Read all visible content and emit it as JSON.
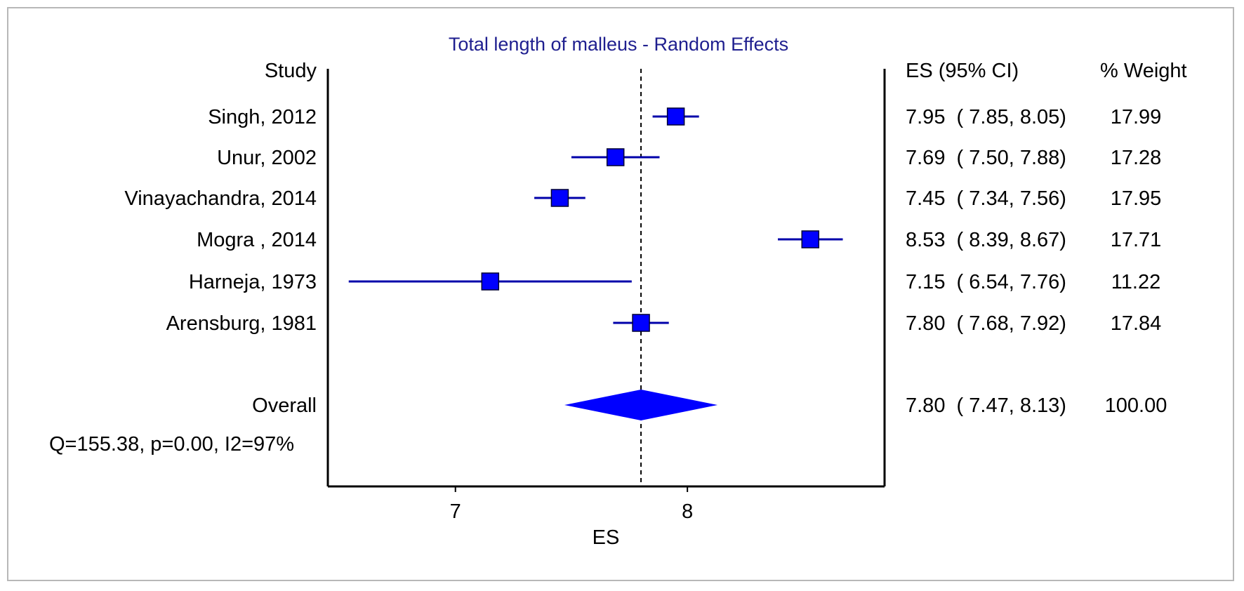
{
  "chart_data": {
    "type": "forest",
    "title": "Total length of malleus - Random Effects",
    "xlabel": "ES",
    "xlim": [
      6.45,
      8.85
    ],
    "xticks": [
      7,
      8
    ],
    "reference_line": 7.8,
    "study_header": "Study",
    "es_header": "ES (95% CI)",
    "weight_header": "% Weight",
    "studies": [
      {
        "label": "Singh, 2012",
        "es": 7.95,
        "lo": 7.85,
        "hi": 8.05,
        "ci_text": "7.95  ( 7.85, 8.05)",
        "weight": "17.99"
      },
      {
        "label": "Unur, 2002",
        "es": 7.69,
        "lo": 7.5,
        "hi": 7.88,
        "ci_text": "7.69  ( 7.50, 7.88)",
        "weight": "17.28"
      },
      {
        "label": "Vinayachandra, 2014",
        "es": 7.45,
        "lo": 7.34,
        "hi": 7.56,
        "ci_text": "7.45  ( 7.34, 7.56)",
        "weight": "17.95"
      },
      {
        "label": "Mogra , 2014",
        "es": 8.53,
        "lo": 8.39,
        "hi": 8.67,
        "ci_text": "8.53  ( 8.39, 8.67)",
        "weight": "17.71"
      },
      {
        "label": "Harneja, 1973",
        "es": 7.15,
        "lo": 6.54,
        "hi": 7.76,
        "ci_text": "7.15  ( 6.54, 7.76)",
        "weight": "11.22"
      },
      {
        "label": "Arensburg, 1981",
        "es": 7.8,
        "lo": 7.68,
        "hi": 7.92,
        "ci_text": "7.80  ( 7.68, 7.92)",
        "weight": "17.84"
      }
    ],
    "overall": {
      "label": "Overall",
      "es": 7.8,
      "lo": 7.47,
      "hi": 8.13,
      "ci_text": "7.80  ( 7.47, 8.13)",
      "weight": "100.00"
    },
    "heterogeneity": "Q=155.38, p=0.00, I2=97%",
    "colors": {
      "marker": "#0000ff",
      "ci_line": "#0000aa",
      "title": "#1f1f8f",
      "axis": "#000000"
    }
  }
}
